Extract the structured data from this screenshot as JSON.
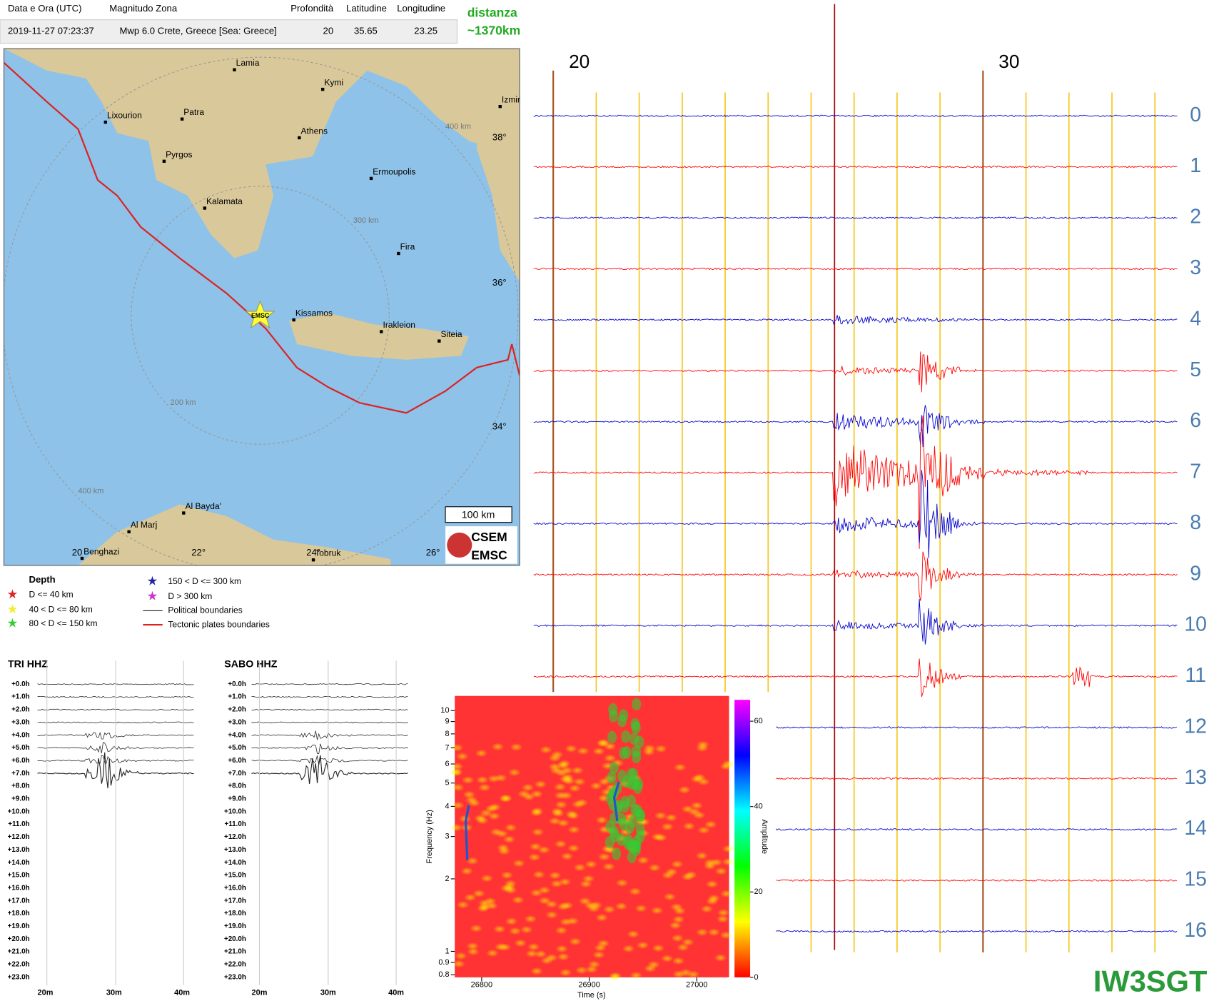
{
  "table": {
    "headers": [
      "Data e Ora (UTC)",
      "Magnitudo Zona",
      "Profondità",
      "Latitudine",
      "Longitudine"
    ],
    "row": [
      "2019-11-27 07:23:37",
      "Mwp 6.0 Crete, Greece [Sea: Greece]",
      "20",
      "35.65",
      "23.25"
    ]
  },
  "distance": {
    "label": "distanza",
    "value": "~1370km"
  },
  "map": {
    "cities": [
      "Lamia",
      "Kymi",
      "Lixourion",
      "Patra",
      "Athens",
      "Pyrgos",
      "Ermoupolis",
      "Kalamata",
      "Fira",
      "Kissamos",
      "Irakleion",
      "Siteia",
      "Al Bayda'",
      "Al Marj",
      "Benghazi",
      "Tobruk",
      "Izmir"
    ],
    "lat_labels": [
      "38°",
      "36°",
      "34°"
    ],
    "lon_labels": [
      "20",
      "22°",
      "24°",
      "26°"
    ],
    "ring_labels": [
      "200 km",
      "300 km",
      "400 km",
      "400 km"
    ],
    "scale_bar": "100 km",
    "epicenter_label": "EMSC",
    "logo": [
      "CSEM",
      "EMSC"
    ]
  },
  "legend": {
    "title": "Depth",
    "items": [
      "D <= 40 km",
      "40 < D <= 80 km",
      "80 < D <= 150 km",
      "150 < D <= 300 km",
      "D > 300 km",
      "Political boundaries",
      "Tectonic plates boundaries"
    ]
  },
  "helicorders": [
    {
      "title": "TRI HHZ",
      "hours": [
        "+0.0h",
        "+1.0h",
        "+2.0h",
        "+3.0h",
        "+4.0h",
        "+5.0h",
        "+6.0h",
        "+7.0h",
        "+8.0h",
        "+9.0h",
        "+10.0h",
        "+11.0h",
        "+12.0h",
        "+13.0h",
        "+14.0h",
        "+15.0h",
        "+16.0h",
        "+17.0h",
        "+18.0h",
        "+19.0h",
        "+20.0h",
        "+21.0h",
        "+22.0h",
        "+23.0h"
      ],
      "minutes": [
        "20m",
        "30m",
        "40m"
      ]
    },
    {
      "title": "SABO HHZ",
      "hours": [
        "+0.0h",
        "+1.0h",
        "+2.0h",
        "+3.0h",
        "+4.0h",
        "+5.0h",
        "+6.0h",
        "+7.0h",
        "+8.0h",
        "+9.0h",
        "+10.0h",
        "+11.0h",
        "+12.0h",
        "+13.0h",
        "+14.0h",
        "+15.0h",
        "+16.0h",
        "+17.0h",
        "+18.0h",
        "+19.0h",
        "+20.0h",
        "+21.0h",
        "+22.0h",
        "+23.0h"
      ],
      "minutes": [
        "20m",
        "30m",
        "40m"
      ]
    }
  ],
  "spectrogram": {
    "xlabel": "Time (s)",
    "ylabel": "Frequency (Hz)",
    "clabel": "Amplitude",
    "xlim": [
      26775,
      27030
    ],
    "xticks": [
      26800,
      26900,
      27000
    ],
    "ylim": [
      0.78,
      11.5
    ],
    "yticks": [
      0.8,
      0.9,
      1,
      2,
      3,
      4,
      5,
      6,
      7,
      8,
      9,
      10
    ],
    "ylog": true,
    "clim": [
      0,
      65
    ],
    "cticks": [
      0,
      20,
      40,
      60
    ]
  },
  "seismogram": {
    "time_labels": [
      "20",
      "30"
    ],
    "rows": [
      "0",
      "1",
      "2",
      "3",
      "4",
      "5",
      "6",
      "7",
      "8",
      "9",
      "10",
      "11",
      "12",
      "13",
      "14",
      "15",
      "16"
    ]
  },
  "signature": "IW3SGT"
}
